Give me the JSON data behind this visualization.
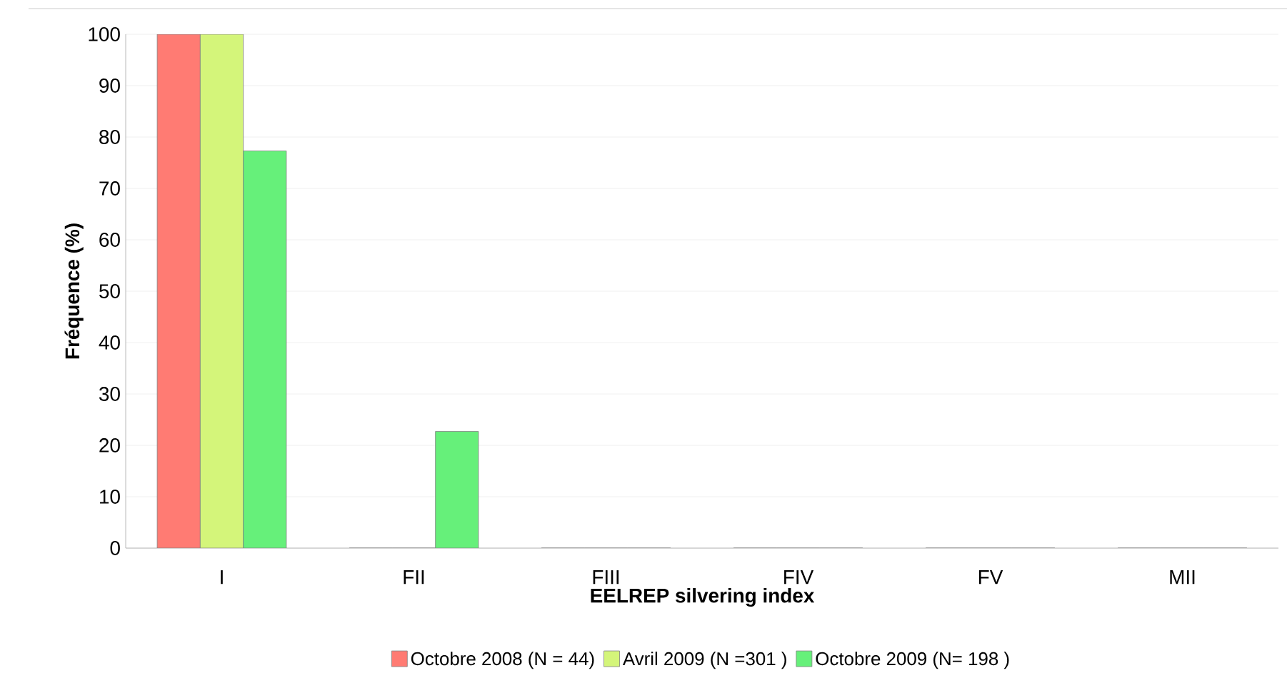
{
  "chart_data": {
    "type": "bar",
    "xlabel": "EELREP silvering index",
    "ylabel": "Fréquence (%)",
    "categories": [
      "I",
      "FII",
      "FIII",
      "FIV",
      "FV",
      "MII"
    ],
    "series": [
      {
        "name": "Octobre 2008 (N = 44)",
        "color": "#ff7b73",
        "values": [
          100,
          0,
          0,
          0,
          0,
          0
        ]
      },
      {
        "name": "Avril 2009 (N =301 )",
        "color": "#d4f57a",
        "values": [
          100,
          0,
          0,
          0,
          0,
          0
        ]
      },
      {
        "name": "Octobre 2009 (N= 198 )",
        "color": "#66f07a",
        "values": [
          77.3,
          22.7,
          0,
          0,
          0,
          0
        ]
      }
    ],
    "ylim": [
      0,
      100
    ],
    "yticks": [
      0,
      10,
      20,
      30,
      40,
      50,
      60,
      70,
      80,
      90,
      100
    ],
    "grid": "y",
    "legend": "bottom"
  }
}
